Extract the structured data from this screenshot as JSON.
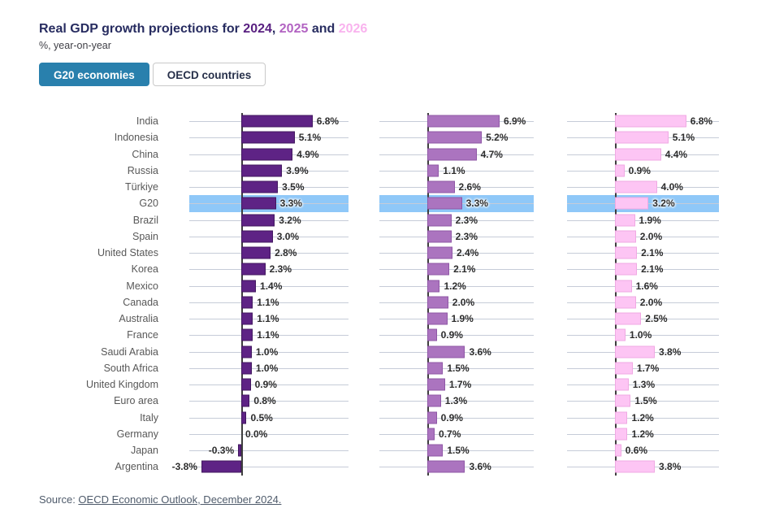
{
  "header": {
    "title_prefix": "Real GDP growth projections for ",
    "year1": "2024",
    "sep1": ", ",
    "year2": "2025",
    "sep2": " and ",
    "year3": "2026",
    "subtitle": "%, year-on-year"
  },
  "tabs": [
    {
      "label": "G20 economies",
      "active": true
    },
    {
      "label": "OECD countries",
      "active": false
    }
  ],
  "source": {
    "prefix": "Source: ",
    "link_text": "OECD Economic Outlook, December 2024."
  },
  "colors": {
    "title_navy": "#272c60",
    "year_2024": "#581f80",
    "year_2025": "#b263c2",
    "year_2026": "#f9b3ee",
    "active_tab_bg": "#2980ad",
    "highlight_band": "#8fc8f8",
    "gridline": "#c6ccd8",
    "axis": "#3e3e3e"
  },
  "chart_data": {
    "type": "bar",
    "orientation": "horizontal",
    "title": "Real GDP growth projections for 2024, 2025 and 2026",
    "subtitle": "%, year-on-year",
    "value_suffix": "%",
    "xlim": [
      -5,
      10
    ],
    "grid": true,
    "highlight_category": "G20",
    "highlight_color": "#8fc8f8",
    "categories": [
      "India",
      "Indonesia",
      "China",
      "Russia",
      "Türkiye",
      "G20",
      "Brazil",
      "Spain",
      "United States",
      "Korea",
      "Mexico",
      "Canada",
      "Australia",
      "France",
      "Saudi Arabia",
      "South Africa",
      "United Kingdom",
      "Euro area",
      "Italy",
      "Germany",
      "Japan",
      "Argentina"
    ],
    "series": [
      {
        "name": "2024",
        "color": "#5e2385",
        "border_color": "#41175f",
        "values": [
          6.8,
          5.1,
          4.9,
          3.9,
          3.5,
          3.3,
          3.2,
          3.0,
          2.8,
          2.3,
          1.4,
          1.1,
          1.1,
          1.1,
          1.0,
          1.0,
          0.9,
          0.8,
          0.5,
          0.0,
          -0.3,
          -3.8
        ]
      },
      {
        "name": "2025",
        "color": "#ab74bf",
        "border_color": "#8f57a6",
        "values": [
          6.9,
          5.2,
          4.7,
          1.1,
          2.6,
          3.3,
          2.3,
          2.3,
          2.4,
          2.1,
          1.2,
          2.0,
          1.9,
          0.9,
          3.6,
          1.5,
          1.7,
          1.3,
          0.9,
          0.7,
          1.5,
          3.6
        ]
      },
      {
        "name": "2026",
        "color": "#fdc5f4",
        "border_color": "#f0a9e3",
        "values": [
          6.8,
          5.1,
          4.4,
          0.9,
          4.0,
          3.2,
          1.9,
          2.0,
          2.1,
          2.1,
          1.6,
          2.0,
          2.5,
          1.0,
          3.8,
          1.7,
          1.3,
          1.5,
          1.2,
          1.2,
          0.6,
          3.8
        ]
      }
    ]
  }
}
